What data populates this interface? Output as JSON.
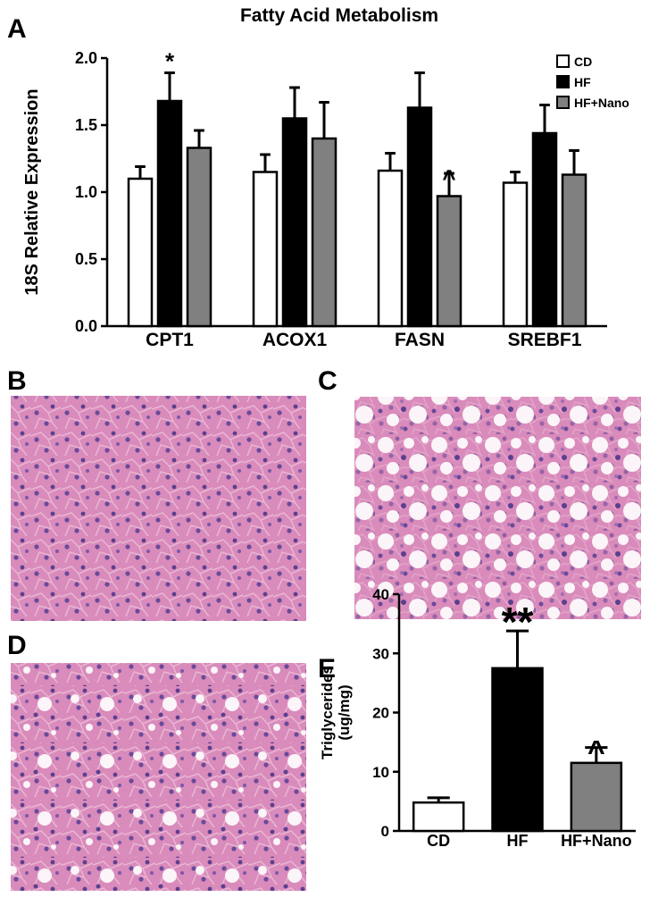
{
  "panel_labels": [
    "A",
    "B",
    "C",
    "D",
    "E"
  ],
  "chart_data": [
    {
      "type": "grouped-bar",
      "title": "Fatty Acid Metabolism",
      "ylabel": "18S Relative Expression",
      "categories": [
        "CPT1",
        "ACOX1",
        "FASN",
        "SREBF1"
      ],
      "series": [
        {
          "name": "CD",
          "color": "#ffffff",
          "values": [
            1.1,
            1.15,
            1.16,
            1.07
          ],
          "errors": [
            0.09,
            0.13,
            0.13,
            0.08
          ]
        },
        {
          "name": "HF",
          "color": "#000000",
          "values": [
            1.68,
            1.55,
            1.63,
            1.44
          ],
          "errors": [
            0.21,
            0.23,
            0.26,
            0.21
          ]
        },
        {
          "name": "HF+Nano",
          "color": "#808080",
          "values": [
            1.33,
            1.4,
            0.97,
            1.13
          ],
          "errors": [
            0.13,
            0.27,
            0.17,
            0.18
          ]
        }
      ],
      "ylim": [
        0,
        2
      ],
      "yticks": [
        {
          "value": 0,
          "label": "0.0"
        },
        {
          "value": 0.5,
          "label": "0.5"
        },
        {
          "value": 1,
          "label": "1.0"
        },
        {
          "value": 1.5,
          "label": "1.5"
        },
        {
          "value": 2,
          "label": "2.0"
        }
      ],
      "legend": "top-right",
      "annotations": [
        {
          "text": "*",
          "category": "CPT1",
          "series": "HF"
        },
        {
          "text": "^",
          "category": "FASN",
          "series": "HF+Nano"
        }
      ]
    },
    {
      "type": "bar",
      "ylabel": [
        "Triglycerides",
        "(ug/mg)"
      ],
      "categories": [
        "CD",
        "HF",
        "HF+Nano"
      ],
      "values": [
        4.8,
        27.5,
        11.5
      ],
      "errors": [
        0.8,
        6.3,
        2.6
      ],
      "colors": [
        "#ffffff",
        "#000000",
        "#808080"
      ],
      "ylim": [
        0,
        40
      ],
      "yticks": [
        0,
        10,
        20,
        30,
        40
      ],
      "annotations": [
        {
          "text": "**",
          "category": "HF"
        },
        {
          "text": "^",
          "category": "HF+Nano"
        }
      ]
    }
  ]
}
